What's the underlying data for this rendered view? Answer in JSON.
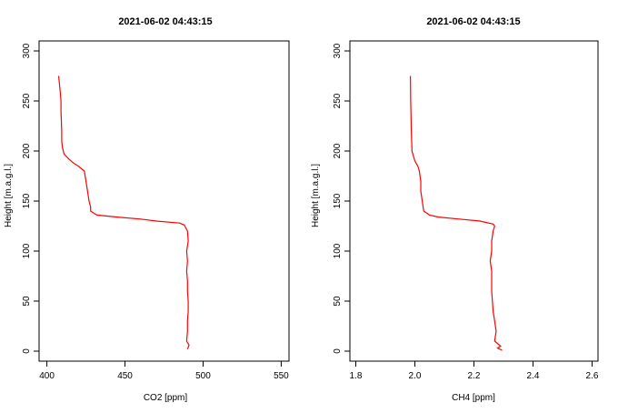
{
  "chart_data": [
    {
      "type": "line",
      "title": "2021-06-02 04:43:15",
      "xlabel": "CO2 [ppm]",
      "ylabel": "Height [m.a.g.l.]",
      "xlim": [
        395,
        555
      ],
      "ylim": [
        -10,
        310
      ],
      "xticks": [
        400,
        450,
        500,
        550
      ],
      "yticks": [
        0,
        50,
        100,
        150,
        200,
        250,
        300
      ],
      "line_color": "#ff0000",
      "series": [
        {
          "x": [
            490,
            491,
            489.5,
            490,
            490,
            490.5,
            490.5,
            490,
            490,
            489.5,
            490,
            489.5,
            490.5,
            490,
            488,
            485,
            470,
            460,
            445,
            432,
            430,
            428,
            428,
            427,
            426,
            425,
            424,
            420,
            417,
            414,
            411,
            410,
            409.5,
            409.5,
            409,
            409,
            408.5,
            408,
            407.5
          ],
          "y": [
            2,
            6,
            10,
            20,
            30,
            40,
            50,
            60,
            70,
            80,
            90,
            100,
            110,
            120,
            126,
            128,
            130,
            132,
            134,
            136,
            138,
            140,
            144,
            150,
            160,
            170,
            180,
            185,
            188,
            192,
            197,
            203,
            210,
            220,
            240,
            250,
            260,
            268,
            275
          ]
        }
      ]
    },
    {
      "type": "line",
      "title": "2021-06-02 04:43:15",
      "xlabel": "CH4 [ppm]",
      "ylabel": "Height [m.a.g.l.]",
      "xlim": [
        1.78,
        2.62
      ],
      "ylim": [
        -10,
        310
      ],
      "xticks": [
        1.8,
        2.0,
        2.2,
        2.4,
        2.6
      ],
      "yticks": [
        0,
        50,
        100,
        150,
        200,
        250,
        300
      ],
      "line_color": "#ff0000",
      "series": [
        {
          "x": [
            2.295,
            2.28,
            2.29,
            2.27,
            2.275,
            2.27,
            2.265,
            2.26,
            2.26,
            2.255,
            2.26,
            2.26,
            2.265,
            2.27,
            2.265,
            2.22,
            2.15,
            2.08,
            2.05,
            2.04,
            2.03,
            2.025,
            2.02,
            2.02,
            2.015,
            2.01,
            2.0,
            1.99,
            1.988,
            1.986,
            1.985
          ],
          "y": [
            1,
            3,
            5,
            10,
            20,
            30,
            40,
            60,
            80,
            90,
            100,
            110,
            120,
            125,
            127,
            130,
            132,
            134,
            136,
            138,
            140,
            150,
            160,
            170,
            180,
            185,
            190,
            200,
            220,
            250,
            275
          ]
        }
      ]
    }
  ]
}
